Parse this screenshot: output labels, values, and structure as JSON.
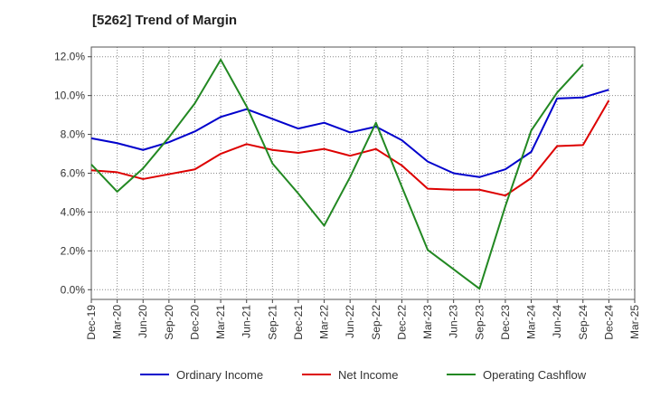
{
  "chart_data": {
    "type": "line",
    "title": "[5262]  Trend of Margin",
    "xlabel": "",
    "ylabel": "",
    "categories": [
      "Dec-19",
      "Mar-20",
      "Jun-20",
      "Sep-20",
      "Dec-20",
      "Mar-21",
      "Jun-21",
      "Sep-21",
      "Dec-21",
      "Mar-22",
      "Jun-22",
      "Sep-22",
      "Dec-22",
      "Mar-23",
      "Jun-23",
      "Sep-23",
      "Dec-23",
      "Mar-24",
      "Jun-24",
      "Sep-24",
      "Dec-24",
      "Mar-25"
    ],
    "ylim": [
      -0.5,
      12.5
    ],
    "yticks": [
      0,
      2,
      4,
      6,
      8,
      10,
      12
    ],
    "ytick_labels": [
      "0.0%",
      "2.0%",
      "4.0%",
      "6.0%",
      "8.0%",
      "10.0%",
      "12.0%"
    ],
    "grid": true,
    "legend_position": "bottom",
    "series": [
      {
        "name": "Ordinary Income",
        "color": "#0000cc",
        "values": [
          7.8,
          7.55,
          7.2,
          7.6,
          8.15,
          8.9,
          9.3,
          8.8,
          8.3,
          8.6,
          8.1,
          8.4,
          7.7,
          6.6,
          6.0,
          5.8,
          6.2,
          7.1,
          9.85,
          9.9,
          10.3,
          null
        ]
      },
      {
        "name": "Net Income",
        "color": "#dd0000",
        "values": [
          6.15,
          6.05,
          5.7,
          5.95,
          6.2,
          7.0,
          7.5,
          7.2,
          7.05,
          7.25,
          6.9,
          7.25,
          6.4,
          5.2,
          5.15,
          5.15,
          4.85,
          5.75,
          7.4,
          7.45,
          9.75,
          null
        ]
      },
      {
        "name": "Operating Cashflow",
        "color": "#228822",
        "values": [
          6.45,
          5.05,
          6.25,
          7.85,
          9.6,
          11.85,
          9.45,
          6.5,
          4.95,
          3.3,
          5.8,
          8.6,
          5.3,
          2.05,
          1.05,
          0.05,
          4.3,
          8.2,
          10.15,
          11.6,
          null,
          null
        ]
      }
    ]
  }
}
